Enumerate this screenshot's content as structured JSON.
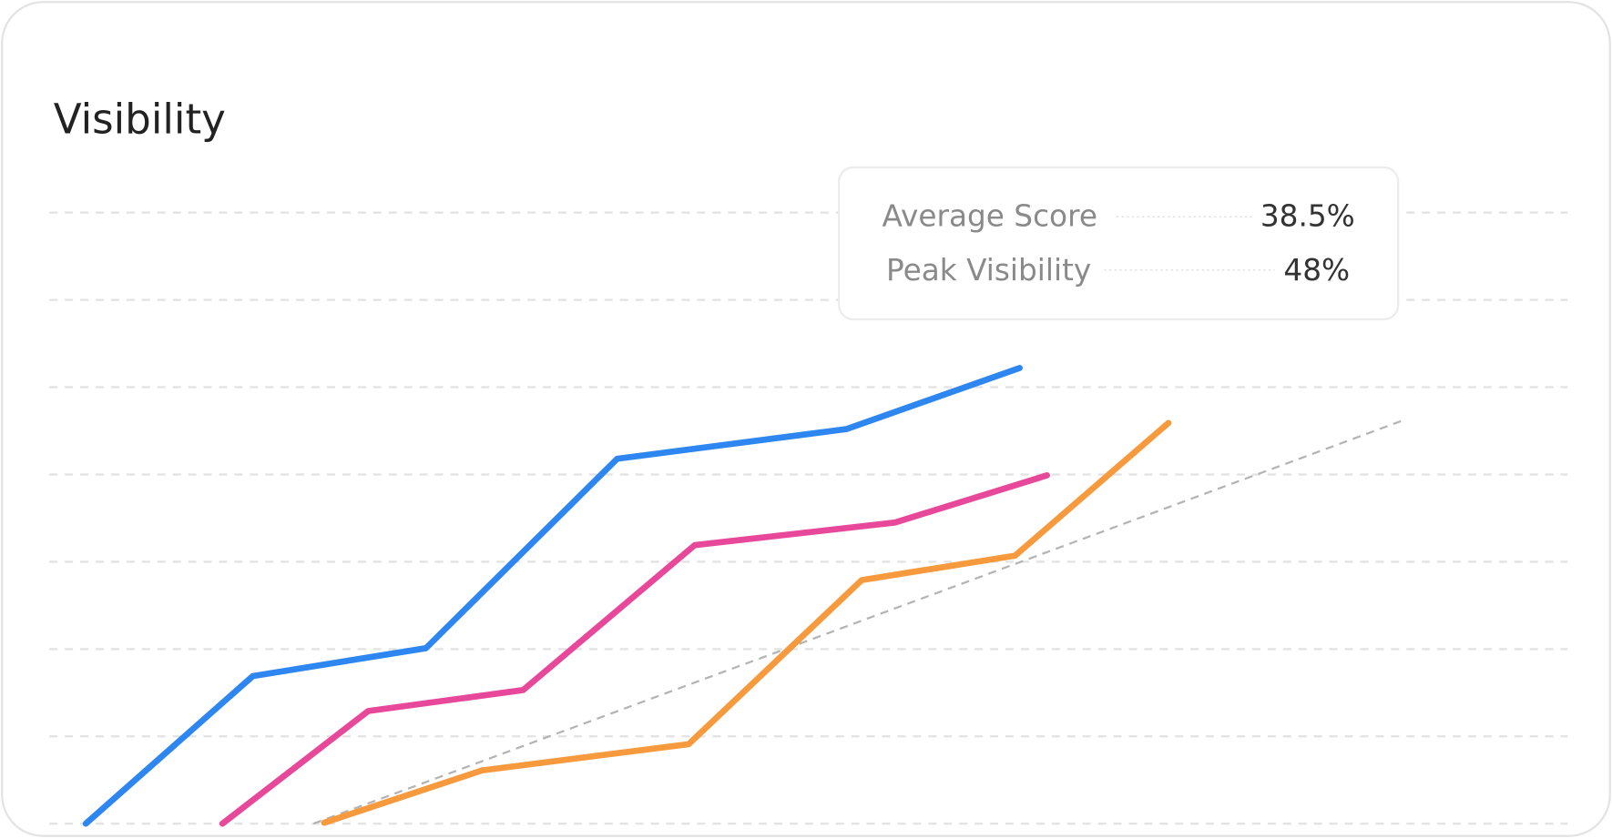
{
  "chart_data": {
    "type": "line",
    "title": "Visibility",
    "xlim": [
      0,
      100
    ],
    "ylim": [
      0,
      7
    ],
    "yticks": [
      0,
      1,
      2,
      3,
      4,
      5,
      6,
      7
    ],
    "grid": true,
    "series": [
      {
        "color": "#2e86f0",
        "x": [
          2.4,
          13.4,
          24.8,
          37.4,
          52.5,
          63.9
        ],
        "values": [
          0,
          1.69,
          2.01,
          4.18,
          4.52,
          5.22
        ]
      },
      {
        "color": "#e8489a",
        "x": [
          11.4,
          21.0,
          31.2,
          42.5,
          55.7,
          65.7
        ],
        "values": [
          0,
          1.29,
          1.53,
          3.19,
          3.45,
          3.99
        ]
      },
      {
        "color": "#f79a3e",
        "x": [
          18.1,
          28.5,
          42.1,
          53.5,
          63.6,
          73.7
        ],
        "values": [
          0.01,
          0.61,
          0.91,
          2.79,
          3.07,
          4.59
        ]
      }
    ],
    "trend": {
      "color": "#b4b4b4",
      "x": [
        17.4,
        89.0
      ],
      "values": [
        0,
        4.61
      ]
    }
  },
  "stats": [
    {
      "label": "Average Score",
      "value": "38.5%"
    },
    {
      "label": "Peak Visibility",
      "value": "48%"
    }
  ]
}
